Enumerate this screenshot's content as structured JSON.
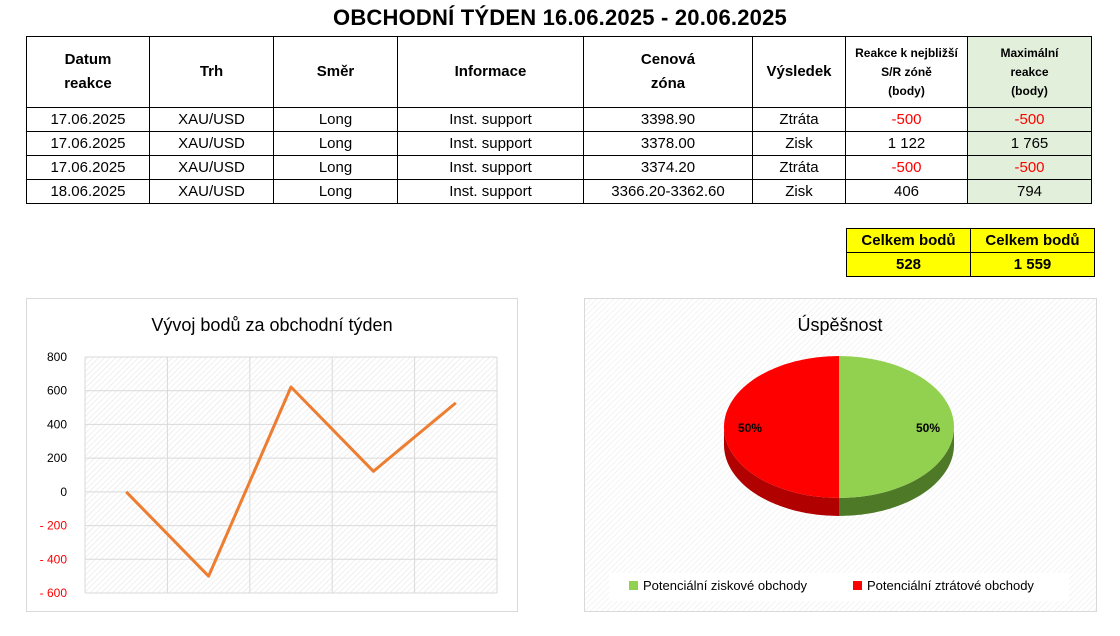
{
  "title": "OBCHODNÍ TÝDEN 16.06.2025 - 20.06.2025",
  "table": {
    "headers": {
      "date": [
        "Datum",
        "reakce"
      ],
      "market": "Trh",
      "direction": "Směr",
      "info": "Informace",
      "zone": [
        "Cenová",
        "zóna"
      ],
      "result": "Výsledek",
      "reaction": [
        "Reakce k nejbližší",
        "S/R zóně",
        "(body)"
      ],
      "max": [
        "Maximální",
        "reakce",
        "(body)"
      ]
    },
    "rows": [
      {
        "date": "17.06.2025",
        "market": "XAU/USD",
        "direction": "Long",
        "info": "Inst. support",
        "zone": "3398.90",
        "result": "Ztráta",
        "reaction": "-500",
        "max": "-500"
      },
      {
        "date": "17.06.2025",
        "market": "XAU/USD",
        "direction": "Long",
        "info": "Inst. support",
        "zone": "3378.00",
        "result": "Zisk",
        "reaction": "1 122",
        "max": "1 765"
      },
      {
        "date": "17.06.2025",
        "market": "XAU/USD",
        "direction": "Long",
        "info": "Inst. support",
        "zone": "3374.20",
        "result": "Ztráta",
        "reaction": "-500",
        "max": "-500"
      },
      {
        "date": "18.06.2025",
        "market": "XAU/USD",
        "direction": "Long",
        "info": "Inst. support",
        "zone": "3366.20-3362.60",
        "result": "Zisk",
        "reaction": "406",
        "max": "794"
      }
    ]
  },
  "totals": [
    {
      "label": "Celkem bodů",
      "value": "528"
    },
    {
      "label": "Celkem bodů",
      "value": "1 559"
    }
  ],
  "colors": {
    "line": "#ed7d31",
    "positive": "#92d050",
    "positive_side": "#4e7a28",
    "negative": "#ff0000",
    "negative_side": "#b00000",
    "negative_text": "#ff0000",
    "highlight": "#ffff00",
    "max_cell": "#e2efda"
  },
  "chart_data": [
    {
      "type": "line",
      "title": "Vývoj bodů za obchodní týden",
      "x": [
        1,
        2,
        3,
        4,
        5
      ],
      "series": [
        {
          "values": [
            0,
            -500,
            622,
            122,
            528
          ]
        }
      ],
      "ylim": [
        -600,
        800
      ],
      "yticks": [
        800,
        600,
        400,
        200,
        0,
        -200,
        -400,
        -600
      ],
      "ytick_labels": [
        "800",
        "600",
        "400",
        "200",
        "0",
        "- 200",
        "- 400",
        "- 600"
      ],
      "grid": true
    },
    {
      "type": "pie",
      "title": "Úspěšnost",
      "slices": [
        {
          "name": "Potenciální ziskové obchody",
          "value": 50,
          "label": "50%"
        },
        {
          "name": "Potenciální ztrátové obchody",
          "value": 50,
          "label": "50%"
        }
      ],
      "legend": "bottom"
    }
  ]
}
